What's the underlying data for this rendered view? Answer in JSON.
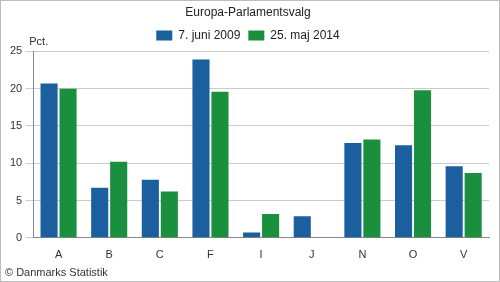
{
  "chart_data": {
    "type": "bar",
    "title": "Europa-Parlamentsvalg",
    "y_label": "Pct.",
    "annotations": [
      "© Danmarks Statistik"
    ],
    "categories": [
      "A",
      "B",
      "C",
      "F",
      "I",
      "J",
      "N",
      "O",
      "V"
    ],
    "series": [
      {
        "name": "7. juni 2009",
        "color": "#1b5f9e",
        "values": [
          20.7,
          6.7,
          7.8,
          23.9,
          0.7,
          2.9,
          12.7,
          12.4,
          9.6
        ]
      },
      {
        "name": "25. maj 2014",
        "color": "#1a8f3e",
        "values": [
          20.0,
          10.2,
          6.2,
          19.6,
          3.2,
          null,
          13.2,
          19.8,
          8.7
        ]
      }
    ],
    "ylim": [
      0,
      25
    ],
    "yticks": [
      0,
      5,
      10,
      15,
      20,
      25
    ],
    "grid": true,
    "legend": "top"
  }
}
